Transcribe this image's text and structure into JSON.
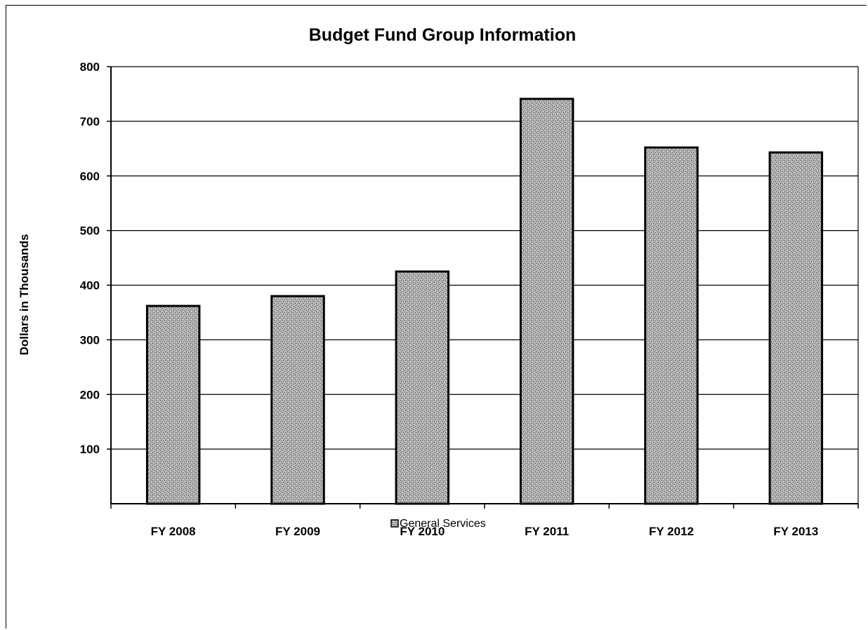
{
  "chart_data": {
    "type": "bar",
    "title": "Budget Fund Group Information",
    "xlabel": "",
    "ylabel": "Dollars in Thousands",
    "categories": [
      "FY 2008",
      "FY 2009",
      "FY 2010",
      "FY 2011",
      "FY 2012",
      "FY 2013"
    ],
    "series": [
      {
        "name": "General Services",
        "values": [
          362,
          380,
          425,
          741,
          652,
          643
        ]
      }
    ],
    "ylim": [
      0,
      800
    ],
    "yticks": [
      100,
      200,
      300,
      400,
      500,
      600,
      700,
      800
    ],
    "ytick_labels": [
      "100",
      "200",
      "300",
      "400",
      "500",
      "600",
      "700",
      "800"
    ],
    "grid": true,
    "legend_position": "bottom",
    "colors": {
      "bar_fill": "#a8a8a8",
      "bar_edge": "#000000",
      "grid": "#000000"
    }
  }
}
